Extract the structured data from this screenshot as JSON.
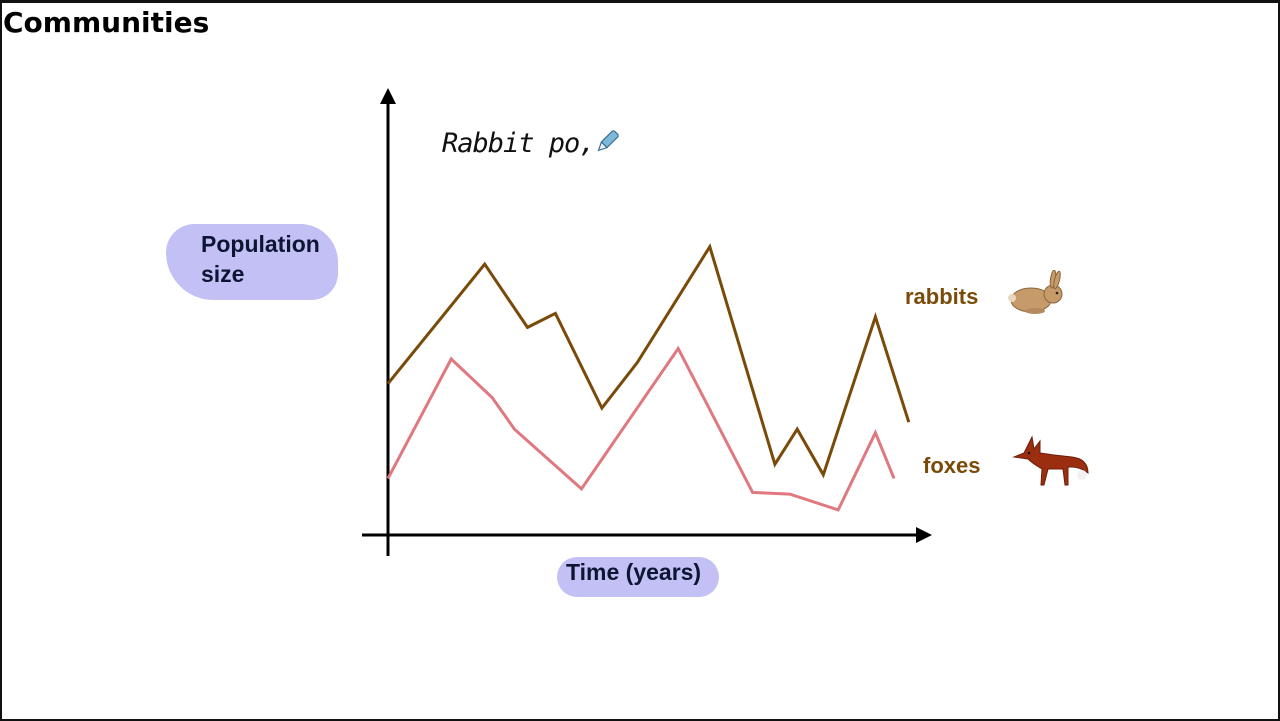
{
  "slide": {
    "title": "Communities"
  },
  "annotation": {
    "text": "Rabbit po,"
  },
  "colors": {
    "rabbits": "#7a4a08",
    "foxes": "#e07880",
    "highlight": "#c2c0f5",
    "axis": "#000000"
  },
  "icons": {
    "rabbit": "rabbit-icon",
    "fox": "fox-icon",
    "pen": "pen-icon"
  },
  "chart_data": {
    "type": "line",
    "ylabel": "Population size",
    "xlabel": "Time (years)",
    "x": [
      0,
      1.45,
      3.0,
      4.15,
      4.9,
      6.2,
      7.15,
      8.65,
      10.1,
      11.1,
      11.7,
      12.6,
      13.6,
      14.3
    ],
    "xlim": [
      0,
      14.3
    ],
    "ylim": [
      0,
      10
    ],
    "grid": false,
    "series": [
      {
        "name": "rabbits",
        "x": [
          0,
          2.6,
          3.75,
          4.5,
          5.75,
          6.7,
          8.65,
          10.4,
          11.0,
          11.7,
          13.1,
          14.0
        ],
        "values": [
          4.2,
          7.6,
          5.8,
          6.2,
          3.5,
          4.8,
          8.1,
          1.9,
          2.9,
          1.6,
          6.1,
          3.1
        ]
      },
      {
        "name": "foxes",
        "x": [
          0,
          1.7,
          2.8,
          3.4,
          5.2,
          7.8,
          9.8,
          10.8,
          12.1,
          13.1,
          13.6
        ],
        "values": [
          1.5,
          4.9,
          3.8,
          2.9,
          1.2,
          5.2,
          1.1,
          1.05,
          0.6,
          2.8,
          1.5
        ]
      }
    ]
  }
}
